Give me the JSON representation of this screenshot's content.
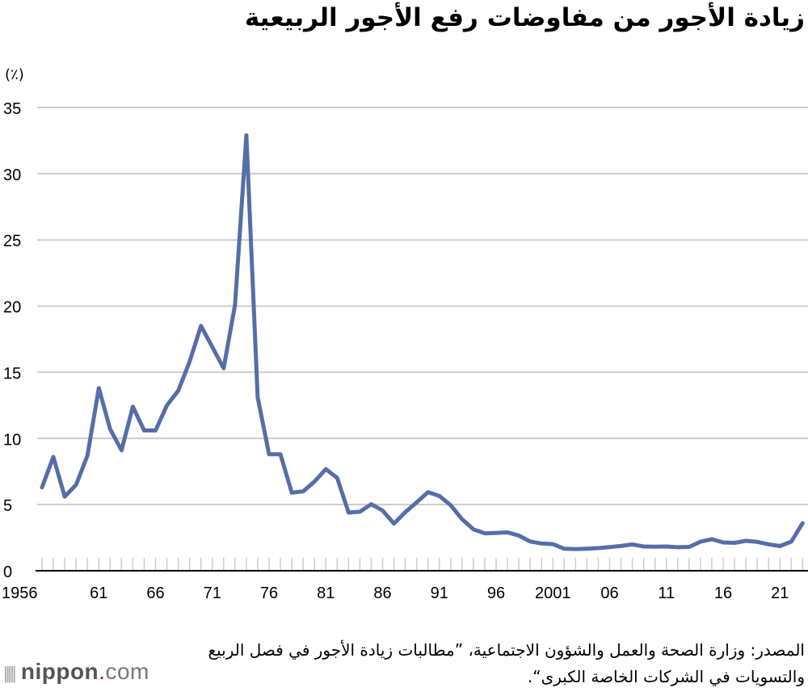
{
  "chart_data": {
    "type": "line",
    "title": "زيادة الأجور من مفاوضات رفع الأجور الربيعية",
    "ylabel": "(٪)",
    "xlabel": "",
    "ylim": [
      0,
      35
    ],
    "yticks": [
      "0",
      "5",
      "10",
      "15",
      "20",
      "25",
      "30",
      "35"
    ],
    "ytick_values": [
      0,
      5,
      10,
      15,
      20,
      25,
      30,
      35
    ],
    "xtick_labels": [
      {
        "year": 1956,
        "label": "1956"
      },
      {
        "year": 1961,
        "label": "61"
      },
      {
        "year": 1966,
        "label": "66"
      },
      {
        "year": 1971,
        "label": "71"
      },
      {
        "year": 1976,
        "label": "76"
      },
      {
        "year": 1981,
        "label": "81"
      },
      {
        "year": 1986,
        "label": "86"
      },
      {
        "year": 1991,
        "label": "91"
      },
      {
        "year": 1996,
        "label": "96"
      },
      {
        "year": 2001,
        "label": "2001"
      },
      {
        "year": 2006,
        "label": "06"
      },
      {
        "year": 2011,
        "label": "11"
      },
      {
        "year": 2016,
        "label": "16"
      },
      {
        "year": 2021,
        "label": "21"
      }
    ],
    "xlim": [
      1956,
      2023
    ],
    "grid": true,
    "line_color": "#566ea8",
    "x": [
      1956,
      1957,
      1958,
      1959,
      1960,
      1961,
      1962,
      1963,
      1964,
      1965,
      1966,
      1967,
      1968,
      1969,
      1970,
      1971,
      1972,
      1973,
      1974,
      1975,
      1976,
      1977,
      1978,
      1979,
      1980,
      1981,
      1982,
      1983,
      1984,
      1985,
      1986,
      1987,
      1988,
      1989,
      1990,
      1991,
      1992,
      1993,
      1994,
      1995,
      1996,
      1997,
      1998,
      1999,
      2000,
      2001,
      2002,
      2003,
      2004,
      2005,
      2006,
      2007,
      2008,
      2009,
      2010,
      2011,
      2012,
      2013,
      2014,
      2015,
      2016,
      2017,
      2018,
      2019,
      2020,
      2021,
      2022,
      2023
    ],
    "values": [
      6.3,
      8.6,
      5.6,
      6.5,
      8.7,
      13.8,
      10.7,
      9.1,
      12.4,
      10.6,
      10.6,
      12.5,
      13.6,
      15.8,
      18.5,
      16.9,
      15.3,
      20.1,
      32.9,
      13.1,
      8.8,
      8.8,
      5.9,
      6.0,
      6.74,
      7.68,
      7.01,
      4.4,
      4.46,
      5.03,
      4.55,
      3.56,
      4.43,
      5.17,
      5.94,
      5.65,
      4.95,
      3.89,
      3.13,
      2.83,
      2.86,
      2.9,
      2.66,
      2.21,
      2.06,
      2.01,
      1.66,
      1.63,
      1.67,
      1.71,
      1.79,
      1.87,
      1.99,
      1.83,
      1.82,
      1.83,
      1.78,
      1.8,
      2.19,
      2.38,
      2.14,
      2.11,
      2.26,
      2.18,
      2.0,
      1.86,
      2.2,
      3.6
    ]
  },
  "source": "المصدر: وزارة الصحة والعمل والشؤون الاجتماعية، ”مطالبات زيادة الأجور في فصل الربيع والتسويات في الشركات الخاصة الكبرى“.",
  "logo": {
    "brand": "nippon",
    "dot": ".",
    "suffix": "com"
  }
}
